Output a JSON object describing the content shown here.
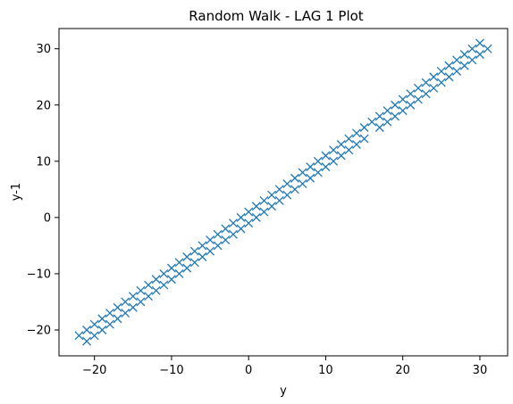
{
  "chart_data": {
    "type": "scatter",
    "title": "Random Walk - LAG 1 Plot",
    "xlabel": "y",
    "ylabel": "y-1",
    "xlim": [
      -24.6,
      33.6
    ],
    "ylim": [
      -24.6,
      33.6
    ],
    "xticks": [
      -20,
      -10,
      0,
      10,
      20,
      30
    ],
    "yticks": [
      -20,
      -10,
      0,
      10,
      20,
      30
    ],
    "xtick_labels": [
      "−20",
      "−10",
      "0",
      "10",
      "20",
      "30"
    ],
    "ytick_labels": [
      "−20",
      "−10",
      "0",
      "10",
      "20",
      "30"
    ],
    "grid": false,
    "legend": "none",
    "marker": "x",
    "color": "#1f77b4",
    "series": [
      {
        "x": [
          -22,
          -21,
          -21,
          -20,
          -20,
          -19,
          -19,
          -18,
          -18,
          -17,
          -17,
          -16,
          -16,
          -15,
          -15,
          -14,
          -14,
          -13,
          -13,
          -12,
          -12,
          -11,
          -11,
          -10,
          -10,
          -9,
          -9,
          -8,
          -8,
          -7,
          -7,
          -6,
          -6,
          -5,
          -5,
          -4,
          -4,
          -3,
          -3,
          -2,
          -2,
          -1,
          -1,
          0,
          0,
          1,
          1,
          2,
          2,
          3,
          3,
          4,
          4,
          5,
          5,
          6,
          6,
          7,
          7,
          8,
          8,
          9,
          9,
          10,
          10,
          11,
          11,
          12,
          12,
          13,
          13,
          14,
          14,
          15,
          15,
          16,
          17,
          17,
          18,
          18,
          19,
          19,
          20,
          20,
          21,
          21,
          22,
          22,
          23,
          23,
          24,
          24,
          25,
          25,
          26,
          26,
          27,
          27,
          28,
          28,
          29,
          29,
          30,
          30,
          31
        ],
        "y": [
          -21,
          -22,
          -20,
          -21,
          -19,
          -20,
          -18,
          -19,
          -17,
          -18,
          -16,
          -17,
          -15,
          -16,
          -14,
          -15,
          -13,
          -14,
          -12,
          -13,
          -11,
          -12,
          -10,
          -11,
          -9,
          -10,
          -8,
          -9,
          -7,
          -8,
          -6,
          -7,
          -5,
          -6,
          -4,
          -5,
          -3,
          -4,
          -2,
          -3,
          -1,
          -2,
          0,
          -1,
          1,
          0,
          2,
          1,
          3,
          2,
          4,
          3,
          5,
          4,
          6,
          5,
          7,
          6,
          8,
          7,
          9,
          8,
          10,
          9,
          11,
          10,
          12,
          11,
          13,
          12,
          14,
          13,
          15,
          14,
          16,
          17,
          16,
          18,
          17,
          19,
          18,
          20,
          19,
          21,
          20,
          22,
          21,
          23,
          22,
          24,
          23,
          25,
          24,
          26,
          25,
          27,
          26,
          28,
          27,
          29,
          28,
          30,
          29,
          31,
          30
        ]
      }
    ]
  }
}
